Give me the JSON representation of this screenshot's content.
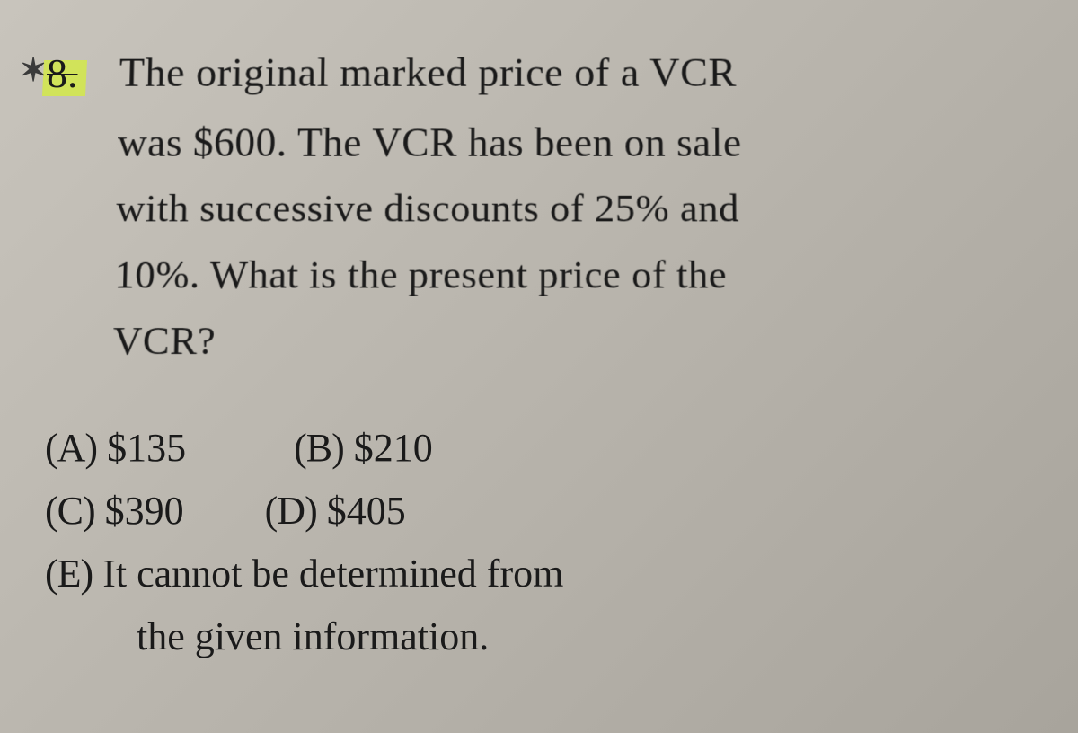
{
  "question": {
    "number": "8.",
    "text_line1": "The original marked price of a VCR",
    "text_line2": "was $600. The VCR has been on sale",
    "text_line3": "with successive discounts of 25% and",
    "text_line4": "10%. What is the present price of the",
    "text_line5": "VCR?"
  },
  "options": {
    "a": {
      "label": "(A)",
      "value": "$135"
    },
    "b": {
      "label": "(B)",
      "value": "$210"
    },
    "c": {
      "label": "(C)",
      "value": "$390"
    },
    "d": {
      "label": "(D)",
      "value": "$405"
    },
    "e": {
      "label": "(E)",
      "value_line1": "It cannot be determined from",
      "value_line2": "the given information."
    }
  },
  "styling": {
    "background_color": "#b8b4ac",
    "text_color": "#1a1a1a",
    "highlight_color": "#d4ed3a",
    "font_family": "Century Schoolbook",
    "question_fontsize": 46,
    "option_fontsize": 44
  }
}
